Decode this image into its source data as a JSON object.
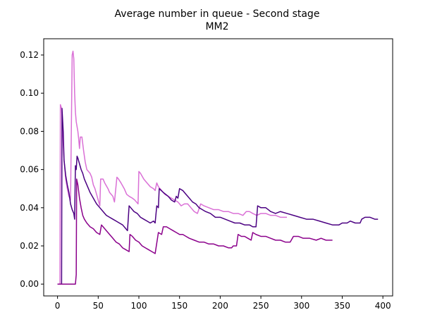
{
  "chart_data": {
    "type": "line",
    "title": "Average number in queue - Second stage",
    "subtitle": "MM2",
    "xlabel": "",
    "ylabel": "",
    "xlim": [
      -17,
      412
    ],
    "ylim": [
      -0.0062,
      0.1285
    ],
    "x_ticks": [
      0,
      50,
      100,
      150,
      200,
      250,
      300,
      350,
      400
    ],
    "y_ticks": [
      0.0,
      0.02,
      0.04,
      0.06,
      0.08,
      0.1,
      0.12
    ],
    "y_tick_labels": [
      "0.00",
      "0.02",
      "0.04",
      "0.06",
      "0.08",
      "0.10",
      "0.12"
    ],
    "grid": false,
    "legend": "none",
    "series": [
      {
        "color": "#DA70D6",
        "points": [
          [
            0,
            0
          ],
          [
            3,
            0
          ],
          [
            3.5,
            0.094
          ],
          [
            5,
            0.092
          ],
          [
            8,
            0.065
          ],
          [
            10,
            0.055
          ],
          [
            12,
            0.05
          ],
          [
            14,
            0.046
          ],
          [
            16,
            0.044
          ],
          [
            18,
            0.12
          ],
          [
            19,
            0.122
          ],
          [
            20,
            0.118
          ],
          [
            21,
            0.1
          ],
          [
            22,
            0.09
          ],
          [
            23,
            0.085
          ],
          [
            25,
            0.08
          ],
          [
            26,
            0.076
          ],
          [
            27,
            0.071
          ],
          [
            28,
            0.077
          ],
          [
            30,
            0.077
          ],
          [
            32,
            0.07
          ],
          [
            34,
            0.064
          ],
          [
            36,
            0.06
          ],
          [
            40,
            0.058
          ],
          [
            42,
            0.056
          ],
          [
            44,
            0.052
          ],
          [
            46,
            0.05
          ],
          [
            48,
            0.047
          ],
          [
            50,
            0.044
          ],
          [
            52,
            0.041
          ],
          [
            53,
            0.055
          ],
          [
            56,
            0.055
          ],
          [
            58,
            0.053
          ],
          [
            62,
            0.05
          ],
          [
            64,
            0.048
          ],
          [
            66,
            0.047
          ],
          [
            68,
            0.046
          ],
          [
            70,
            0.043
          ],
          [
            73,
            0.056
          ],
          [
            75,
            0.055
          ],
          [
            78,
            0.053
          ],
          [
            82,
            0.05
          ],
          [
            85,
            0.047
          ],
          [
            88,
            0.046
          ],
          [
            92,
            0.045
          ],
          [
            95,
            0.044
          ],
          [
            97,
            0.043
          ],
          [
            99,
            0.042
          ],
          [
            100,
            0.059
          ],
          [
            102,
            0.058
          ],
          [
            106,
            0.055
          ],
          [
            110,
            0.053
          ],
          [
            114,
            0.051
          ],
          [
            118,
            0.05
          ],
          [
            120,
            0.049
          ],
          [
            122,
            0.053
          ],
          [
            124,
            0.051
          ],
          [
            128,
            0.049
          ],
          [
            132,
            0.047
          ],
          [
            136,
            0.046
          ],
          [
            140,
            0.045
          ],
          [
            144,
            0.044
          ],
          [
            148,
            0.043
          ],
          [
            152,
            0.041
          ],
          [
            156,
            0.042
          ],
          [
            160,
            0.042
          ],
          [
            164,
            0.04
          ],
          [
            168,
            0.038
          ],
          [
            172,
            0.037
          ],
          [
            176,
            0.042
          ],
          [
            180,
            0.041
          ],
          [
            186,
            0.04
          ],
          [
            192,
            0.039
          ],
          [
            198,
            0.039
          ],
          [
            204,
            0.038
          ],
          [
            210,
            0.038
          ],
          [
            216,
            0.037
          ],
          [
            222,
            0.037
          ],
          [
            228,
            0.036
          ],
          [
            232,
            0.038
          ],
          [
            236,
            0.038
          ],
          [
            240,
            0.037
          ],
          [
            245,
            0.036
          ],
          [
            250,
            0.037
          ],
          [
            256,
            0.037
          ],
          [
            262,
            0.036
          ],
          [
            268,
            0.036
          ],
          [
            274,
            0.035
          ],
          [
            282,
            0.035
          ]
        ]
      },
      {
        "color": "#4B0082",
        "points": [
          [
            0,
            0
          ],
          [
            5,
            0
          ],
          [
            5.5,
            0.092
          ],
          [
            7,
            0.08
          ],
          [
            8,
            0.065
          ],
          [
            10,
            0.057
          ],
          [
            12,
            0.052
          ],
          [
            14,
            0.048
          ],
          [
            16,
            0.042
          ],
          [
            18,
            0.039
          ],
          [
            20,
            0.037
          ],
          [
            21,
            0.034
          ],
          [
            22,
            0.062
          ],
          [
            23,
            0.06
          ],
          [
            24,
            0.067
          ],
          [
            25,
            0.066
          ],
          [
            27,
            0.063
          ],
          [
            29,
            0.06
          ],
          [
            31,
            0.058
          ],
          [
            33,
            0.055
          ],
          [
            35,
            0.053
          ],
          [
            38,
            0.05
          ],
          [
            40,
            0.048
          ],
          [
            44,
            0.045
          ],
          [
            48,
            0.042
          ],
          [
            52,
            0.04
          ],
          [
            56,
            0.038
          ],
          [
            60,
            0.036
          ],
          [
            64,
            0.035
          ],
          [
            68,
            0.034
          ],
          [
            72,
            0.033
          ],
          [
            76,
            0.032
          ],
          [
            80,
            0.031
          ],
          [
            84,
            0.029
          ],
          [
            86,
            0.028
          ],
          [
            88,
            0.041
          ],
          [
            90,
            0.04
          ],
          [
            94,
            0.038
          ],
          [
            98,
            0.037
          ],
          [
            102,
            0.035
          ],
          [
            106,
            0.034
          ],
          [
            110,
            0.033
          ],
          [
            114,
            0.032
          ],
          [
            118,
            0.033
          ],
          [
            120,
            0.032
          ],
          [
            122,
            0.041
          ],
          [
            124,
            0.04
          ],
          [
            125,
            0.05
          ],
          [
            130,
            0.048
          ],
          [
            136,
            0.046
          ],
          [
            140,
            0.044
          ],
          [
            144,
            0.043
          ],
          [
            146,
            0.046
          ],
          [
            148,
            0.045
          ],
          [
            150,
            0.05
          ],
          [
            154,
            0.049
          ],
          [
            158,
            0.047
          ],
          [
            162,
            0.045
          ],
          [
            166,
            0.043
          ],
          [
            170,
            0.042
          ],
          [
            174,
            0.04
          ],
          [
            178,
            0.039
          ],
          [
            182,
            0.038
          ],
          [
            188,
            0.037
          ],
          [
            194,
            0.035
          ],
          [
            200,
            0.035
          ],
          [
            206,
            0.034
          ],
          [
            212,
            0.033
          ],
          [
            218,
            0.032
          ],
          [
            224,
            0.032
          ],
          [
            230,
            0.031
          ],
          [
            236,
            0.031
          ],
          [
            240,
            0.03
          ],
          [
            244,
            0.03
          ],
          [
            246,
            0.041
          ],
          [
            250,
            0.04
          ],
          [
            256,
            0.04
          ],
          [
            262,
            0.038
          ],
          [
            268,
            0.037
          ],
          [
            274,
            0.038
          ],
          [
            282,
            0.037
          ],
          [
            290,
            0.036
          ],
          [
            298,
            0.035
          ],
          [
            306,
            0.034
          ],
          [
            314,
            0.034
          ],
          [
            322,
            0.033
          ],
          [
            330,
            0.032
          ],
          [
            338,
            0.031
          ],
          [
            346,
            0.031
          ],
          [
            350,
            0.032
          ],
          [
            356,
            0.032
          ],
          [
            360,
            0.033
          ],
          [
            366,
            0.032
          ],
          [
            372,
            0.032
          ],
          [
            374,
            0.034
          ],
          [
            378,
            0.035
          ],
          [
            384,
            0.035
          ],
          [
            390,
            0.034
          ],
          [
            394,
            0.034
          ]
        ]
      },
      {
        "color": "#8B008B",
        "points": [
          [
            0,
            0
          ],
          [
            22,
            0
          ],
          [
            23,
            0.005
          ],
          [
            23.5,
            0.055
          ],
          [
            25,
            0.052
          ],
          [
            27,
            0.045
          ],
          [
            29,
            0.04
          ],
          [
            31,
            0.036
          ],
          [
            33,
            0.034
          ],
          [
            36,
            0.032
          ],
          [
            40,
            0.03
          ],
          [
            44,
            0.029
          ],
          [
            48,
            0.027
          ],
          [
            52,
            0.026
          ],
          [
            54,
            0.031
          ],
          [
            56,
            0.03
          ],
          [
            60,
            0.028
          ],
          [
            64,
            0.026
          ],
          [
            68,
            0.024
          ],
          [
            72,
            0.022
          ],
          [
            76,
            0.021
          ],
          [
            80,
            0.019
          ],
          [
            84,
            0.018
          ],
          [
            88,
            0.017
          ],
          [
            89,
            0.026
          ],
          [
            92,
            0.025
          ],
          [
            96,
            0.023
          ],
          [
            100,
            0.022
          ],
          [
            104,
            0.02
          ],
          [
            108,
            0.019
          ],
          [
            112,
            0.018
          ],
          [
            116,
            0.017
          ],
          [
            120,
            0.016
          ],
          [
            124,
            0.027
          ],
          [
            128,
            0.026
          ],
          [
            130,
            0.03
          ],
          [
            134,
            0.03
          ],
          [
            138,
            0.029
          ],
          [
            142,
            0.028
          ],
          [
            146,
            0.027
          ],
          [
            150,
            0.026
          ],
          [
            154,
            0.026
          ],
          [
            158,
            0.025
          ],
          [
            162,
            0.024
          ],
          [
            168,
            0.023
          ],
          [
            174,
            0.022
          ],
          [
            180,
            0.022
          ],
          [
            186,
            0.021
          ],
          [
            192,
            0.021
          ],
          [
            198,
            0.02
          ],
          [
            204,
            0.02
          ],
          [
            210,
            0.019
          ],
          [
            214,
            0.019
          ],
          [
            216,
            0.02
          ],
          [
            220,
            0.02
          ],
          [
            222,
            0.026
          ],
          [
            226,
            0.025
          ],
          [
            230,
            0.025
          ],
          [
            234,
            0.024
          ],
          [
            238,
            0.023
          ],
          [
            240,
            0.027
          ],
          [
            244,
            0.026
          ],
          [
            250,
            0.025
          ],
          [
            256,
            0.025
          ],
          [
            262,
            0.024
          ],
          [
            268,
            0.023
          ],
          [
            274,
            0.023
          ],
          [
            280,
            0.022
          ],
          [
            286,
            0.022
          ],
          [
            290,
            0.025
          ],
          [
            296,
            0.025
          ],
          [
            302,
            0.024
          ],
          [
            310,
            0.024
          ],
          [
            318,
            0.023
          ],
          [
            324,
            0.024
          ],
          [
            330,
            0.023
          ],
          [
            338,
            0.023
          ]
        ]
      }
    ]
  }
}
